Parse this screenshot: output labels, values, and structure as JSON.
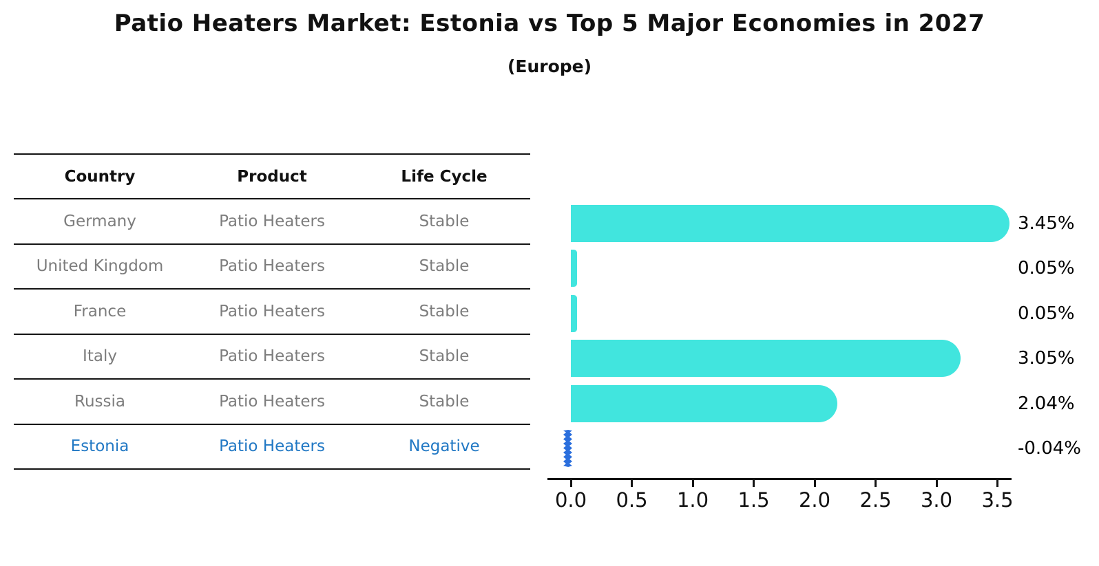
{
  "title": "Patio Heaters Market: Estonia vs Top 5 Major Economies in 2027",
  "subtitle": "(Europe)",
  "table": {
    "headers": [
      "Country",
      "Product",
      "Life Cycle"
    ],
    "rows": [
      {
        "country": "Germany",
        "product": "Patio Heaters",
        "life_cycle": "Stable",
        "highlight": false
      },
      {
        "country": "United Kingdom",
        "product": "Patio Heaters",
        "life_cycle": "Stable",
        "highlight": false
      },
      {
        "country": "France",
        "product": "Patio Heaters",
        "life_cycle": "Stable",
        "highlight": false
      },
      {
        "country": "Italy",
        "product": "Patio Heaters",
        "life_cycle": "Stable",
        "highlight": false
      },
      {
        "country": "Russia",
        "product": "Patio Heaters",
        "life_cycle": "Stable",
        "highlight": false
      },
      {
        "country": "Estonia",
        "product": "Patio Heaters",
        "life_cycle": "Negative",
        "highlight": true
      }
    ]
  },
  "chart_data": {
    "type": "bar",
    "orientation": "horizontal",
    "categories": [
      "Germany",
      "United Kingdom",
      "France",
      "Italy",
      "Russia",
      "Estonia"
    ],
    "values": [
      3.45,
      0.05,
      0.05,
      3.05,
      2.04,
      -0.04
    ],
    "value_labels": [
      "3.45%",
      "0.05%",
      "0.05%",
      "3.05%",
      "2.04%",
      "-0.04%"
    ],
    "xticks": [
      "0.0",
      "0.5",
      "1.0",
      "1.5",
      "2.0",
      "2.5",
      "3.0",
      "3.5"
    ],
    "xlim": [
      -0.2,
      3.62
    ],
    "grid": false,
    "legend": "none",
    "bar_color": "#41e5de",
    "highlight_bar_color": "#2b6fdd"
  },
  "colors": {
    "background": "#ffffff",
    "table_line": "#141414",
    "row_text": "#7d7d7d",
    "highlight_text": "#2178c4",
    "axis": "#141414",
    "value_label_text": "#000000"
  }
}
